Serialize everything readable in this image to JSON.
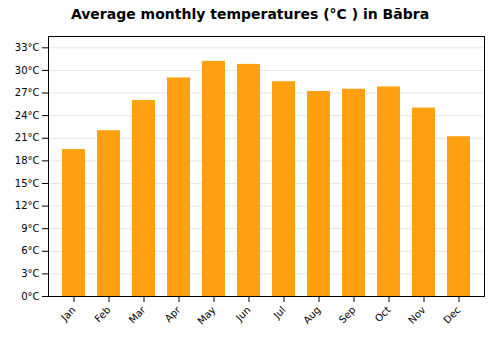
{
  "chart_data": {
    "type": "bar",
    "title": "Average monthly temperatures (°C ) in Bābra",
    "categories": [
      "Jan",
      "Feb",
      "Mar",
      "Apr",
      "May",
      "Jun",
      "Jul",
      "Aug",
      "Sep",
      "Oct",
      "Nov",
      "Dec"
    ],
    "values": [
      19.5,
      22.0,
      26.0,
      29.0,
      31.2,
      30.8,
      28.5,
      27.2,
      27.5,
      27.8,
      25.0,
      21.2
    ],
    "color": "#FFA010",
    "ylim": [
      0,
      34.5
    ],
    "yticks": [
      {
        "value": 0,
        "label": "0°C"
      },
      {
        "value": 3,
        "label": "3°C"
      },
      {
        "value": 6,
        "label": "6°C"
      },
      {
        "value": 9,
        "label": "9°C"
      },
      {
        "value": 12,
        "label": "12°C"
      },
      {
        "value": 15,
        "label": "15°C"
      },
      {
        "value": 18,
        "label": "18°C"
      },
      {
        "value": 21,
        "label": "21°C"
      },
      {
        "value": 24,
        "label": "24°C"
      },
      {
        "value": 27,
        "label": "27°C"
      },
      {
        "value": 30,
        "label": "30°C"
      },
      {
        "value": 33,
        "label": "33°C"
      }
    ],
    "grid": true
  }
}
